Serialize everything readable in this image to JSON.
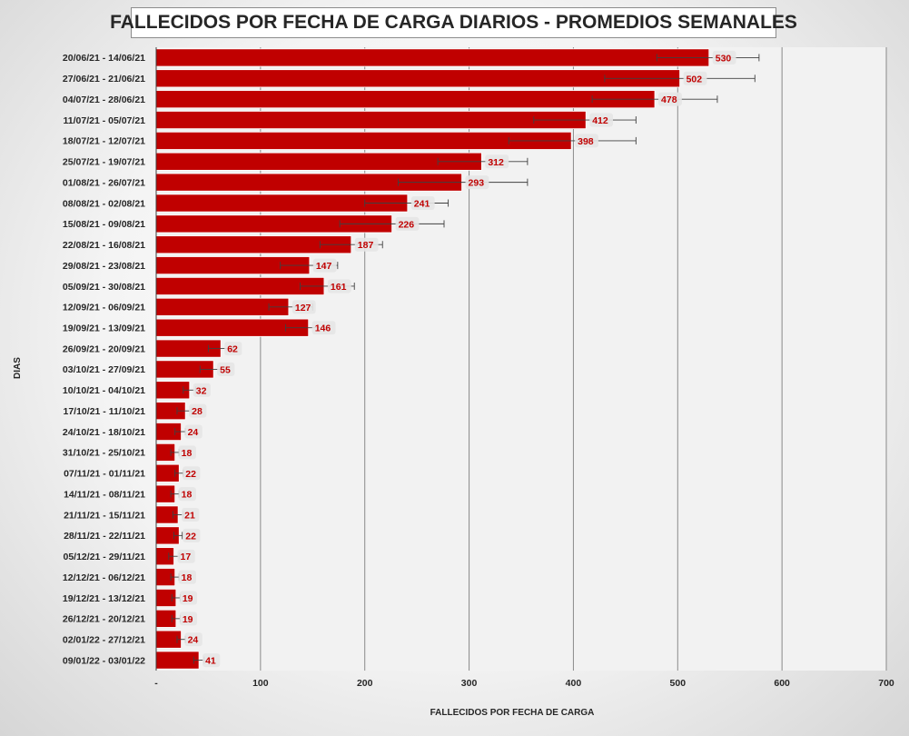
{
  "chart_data": {
    "type": "bar",
    "orientation": "horizontal",
    "title": "FALLECIDOS POR FECHA DE CARGA DIARIOS - PROMEDIOS SEMANALES",
    "xlabel": "FALLECIDOS POR FECHA DE CARGA",
    "ylabel": "DIAS",
    "xlim": [
      0,
      700
    ],
    "x_ticks": [
      0,
      100,
      200,
      300,
      400,
      500,
      600,
      700
    ],
    "x_tick_labels": [
      "-",
      "100",
      "200",
      "300",
      "400",
      "500",
      "600",
      "700"
    ],
    "grid": "vertical",
    "legend": "none",
    "bar_color": "#c00000",
    "label_color": "#c00000",
    "categories": [
      "20/06/21 - 14/06/21",
      "27/06/21 - 21/06/21",
      "04/07/21 - 28/06/21",
      "11/07/21 - 05/07/21",
      "18/07/21 - 12/07/21",
      "25/07/21 - 19/07/21",
      "01/08/21 - 26/07/21",
      "08/08/21 - 02/08/21",
      "15/08/21 - 09/08/21",
      "22/08/21 - 16/08/21",
      "29/08/21 - 23/08/21",
      "05/09/21 - 30/08/21",
      "12/09/21 - 06/09/21",
      "19/09/21 - 13/09/21",
      "26/09/21 - 20/09/21",
      "03/10/21 - 27/09/21",
      "10/10/21 - 04/10/21",
      "17/10/21 - 11/10/21",
      "24/10/21 - 18/10/21",
      "31/10/21 - 25/10/21",
      "07/11/21 - 01/11/21",
      "14/11/21 - 08/11/21",
      "21/11/21 - 15/11/21",
      "28/11/21 - 22/11/21",
      "05/12/21 - 29/11/21",
      "12/12/21 - 06/12/21",
      "19/12/21 - 13/12/21",
      "26/12/21 - 20/12/21",
      "02/01/22 - 27/12/21",
      "09/01/22 - 03/01/22"
    ],
    "values": [
      530,
      502,
      478,
      412,
      398,
      312,
      293,
      241,
      226,
      187,
      147,
      161,
      127,
      146,
      62,
      55,
      32,
      28,
      24,
      18,
      22,
      18,
      21,
      22,
      17,
      18,
      19,
      19,
      24,
      41
    ],
    "error_bars": [
      [
        480,
        578
      ],
      [
        430,
        574
      ],
      [
        418,
        538
      ],
      [
        362,
        460
      ],
      [
        338,
        460
      ],
      [
        270,
        356
      ],
      [
        232,
        356
      ],
      [
        200,
        280
      ],
      [
        176,
        276
      ],
      [
        157,
        217
      ],
      [
        119,
        174
      ],
      [
        138,
        190
      ],
      [
        108,
        150
      ],
      [
        124,
        166
      ],
      [
        50,
        74
      ],
      [
        42,
        68
      ],
      [
        26,
        38
      ],
      [
        20,
        34
      ],
      [
        18,
        28
      ],
      [
        14,
        22
      ],
      [
        18,
        26
      ],
      [
        14,
        22
      ],
      [
        16,
        26
      ],
      [
        17,
        25
      ],
      [
        12,
        22
      ],
      [
        14,
        22
      ],
      [
        15,
        23
      ],
      [
        15,
        23
      ],
      [
        20,
        28
      ],
      [
        36,
        46
      ]
    ]
  }
}
